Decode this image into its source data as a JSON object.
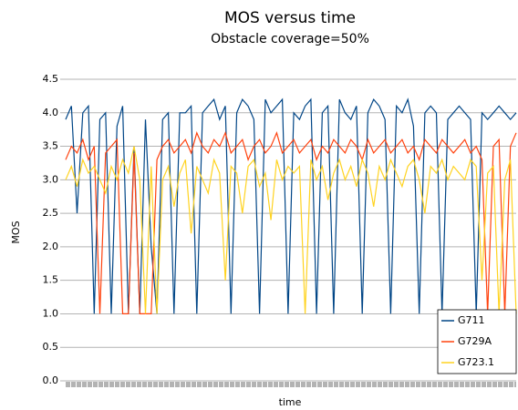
{
  "chart_data": {
    "type": "line",
    "title": "MOS versus time",
    "subtitle": "Obstacle coverage=50%",
    "y_label": "MOS",
    "x_label": "time",
    "categories": [
      null,
      null,
      null,
      null,
      null,
      null,
      null,
      null,
      null,
      null,
      null,
      null,
      null,
      null,
      null,
      null,
      null,
      null,
      null,
      null,
      null,
      null,
      null,
      null,
      null,
      null,
      null,
      null,
      null,
      null,
      null,
      null,
      null,
      null,
      null,
      null,
      null,
      null,
      null,
      null,
      null,
      null,
      null,
      null,
      null,
      null,
      null,
      null,
      null,
      null,
      null,
      null,
      null,
      null,
      null,
      null,
      null,
      null,
      null,
      null,
      null,
      null,
      null,
      null,
      null,
      null,
      null,
      null,
      null,
      null,
      null,
      null,
      null,
      null,
      null,
      null,
      null,
      null,
      null,
      null
    ],
    "ylim": [
      0,
      4.5
    ],
    "yticks": [
      {
        "value": 0,
        "label": "0.0"
      },
      0.5,
      {
        "value": 1,
        "label": "1.0"
      },
      1.5,
      {
        "value": 2,
        "label": "2.0"
      },
      2.5,
      {
        "value": 3,
        "label": "3.0"
      },
      3.5,
      {
        "value": 4,
        "label": "4.0"
      },
      4.5
    ],
    "grid": true,
    "legend": "lower-right",
    "series": [
      {
        "name": "G711",
        "color": "#004586",
        "values": [
          3.9,
          4.1,
          2.5,
          4.0,
          4.1,
          1.0,
          3.9,
          4.0,
          1.0,
          3.8,
          4.1,
          1.0,
          3.5,
          1.0,
          3.9,
          2.0,
          1.0,
          3.9,
          4.0,
          1.0,
          4.0,
          4.0,
          4.1,
          1.0,
          4.0,
          4.1,
          4.2,
          3.9,
          4.1,
          1.0,
          4.0,
          4.2,
          4.1,
          3.9,
          1.0,
          4.2,
          4.0,
          4.1,
          4.2,
          1.0,
          4.0,
          3.9,
          4.1,
          4.2,
          1.0,
          4.0,
          4.1,
          1.0,
          4.2,
          4.0,
          3.9,
          4.1,
          1.0,
          4.0,
          4.2,
          4.1,
          3.9,
          1.0,
          4.1,
          4.0,
          4.2,
          3.8,
          1.0,
          4.0,
          4.1,
          4.0,
          1.0,
          3.9,
          4.0,
          4.1,
          4.0,
          3.9,
          1.0,
          4.0,
          3.9,
          4.0,
          4.1,
          4.0,
          3.9,
          4.0
        ]
      },
      {
        "name": "G729A",
        "color": "#ff420e",
        "values": [
          3.3,
          3.5,
          3.4,
          3.6,
          3.3,
          3.5,
          1.0,
          3.4,
          3.5,
          3.6,
          1.0,
          1.0,
          3.4,
          1.0,
          1.0,
          1.0,
          3.3,
          3.5,
          3.6,
          3.4,
          3.5,
          3.6,
          3.4,
          3.7,
          3.5,
          3.4,
          3.6,
          3.5,
          3.7,
          3.4,
          3.5,
          3.6,
          3.3,
          3.5,
          3.6,
          3.4,
          3.5,
          3.7,
          3.4,
          3.5,
          3.6,
          3.4,
          3.5,
          3.6,
          3.3,
          3.5,
          3.4,
          3.6,
          3.5,
          3.4,
          3.6,
          3.5,
          3.3,
          3.6,
          3.4,
          3.5,
          3.6,
          3.4,
          3.5,
          3.6,
          3.4,
          3.5,
          3.3,
          3.6,
          3.5,
          3.4,
          3.6,
          3.5,
          3.4,
          3.5,
          3.6,
          3.4,
          3.5,
          3.3,
          1.0,
          3.5,
          3.6,
          1.0,
          3.5,
          3.7
        ]
      },
      {
        "name": "G723.1",
        "color": "#ffd320",
        "values": [
          3.0,
          3.2,
          2.9,
          3.3,
          3.1,
          3.2,
          3.0,
          2.8,
          3.2,
          3.0,
          3.3,
          3.1,
          3.5,
          3.0,
          1.0,
          3.2,
          1.0,
          3.0,
          3.2,
          2.6,
          3.1,
          3.3,
          2.2,
          3.2,
          3.0,
          2.8,
          3.3,
          3.1,
          1.5,
          3.2,
          3.1,
          2.5,
          3.2,
          3.3,
          2.9,
          3.1,
          2.4,
          3.3,
          3.0,
          3.2,
          3.1,
          3.2,
          1.0,
          3.3,
          3.0,
          3.2,
          2.7,
          3.1,
          3.3,
          3.0,
          3.2,
          2.9,
          3.3,
          3.1,
          2.6,
          3.2,
          3.0,
          3.3,
          3.1,
          2.9,
          3.2,
          3.3,
          3.0,
          2.5,
          3.2,
          3.1,
          3.3,
          3.0,
          3.2,
          3.1,
          3.0,
          3.3,
          3.2,
          1.5,
          3.1,
          3.2,
          1.0,
          3.0,
          3.3,
          1.0
        ]
      }
    ]
  }
}
